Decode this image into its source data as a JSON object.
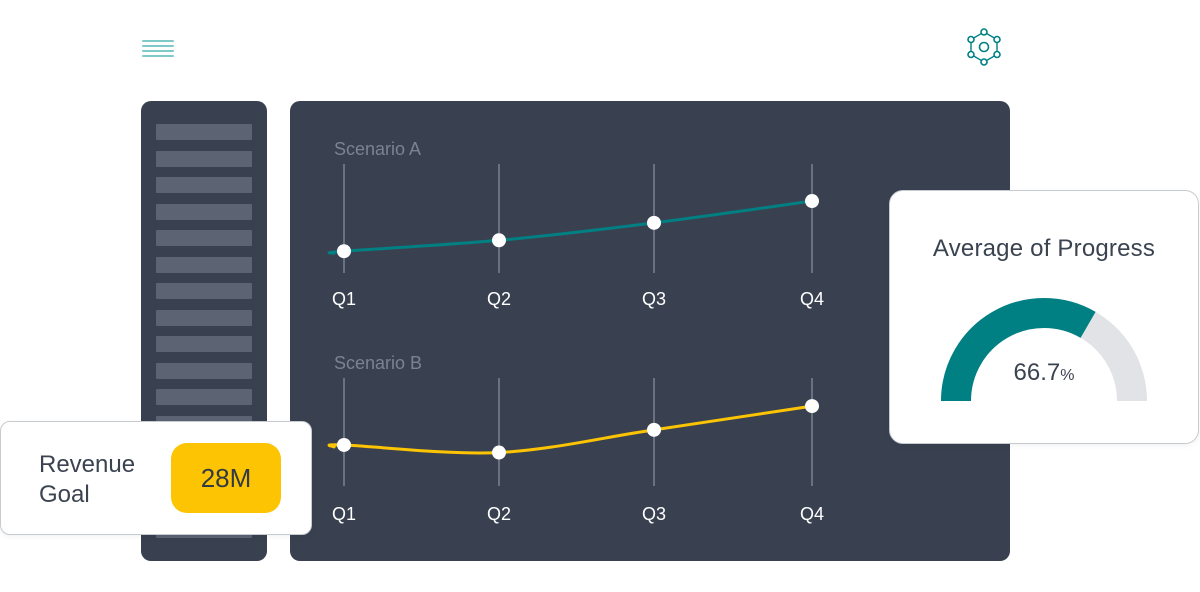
{
  "header": {
    "menu_icon": "hamburger-menu-icon",
    "hub_icon": "network-hub-icon"
  },
  "colors": {
    "panel": "#394150",
    "teal": "#008083",
    "yellow": "#fcc402",
    "gauge_track": "#e1e3e6",
    "menu_icon": "#7fc9c9"
  },
  "chart_data": [
    {
      "type": "line",
      "title": "Scenario A",
      "categories": [
        "Q1",
        "Q2",
        "Q3",
        "Q4"
      ],
      "series": [
        {
          "values": [
            20,
            30,
            46,
            66
          ],
          "color": "#008083"
        }
      ],
      "ylim": [
        0,
        100
      ],
      "grid": true
    },
    {
      "type": "line",
      "title": "Scenario B",
      "categories": [
        "Q1",
        "Q2",
        "Q3",
        "Q4"
      ],
      "series": [
        {
          "values": [
            38,
            31,
            52,
            74
          ],
          "color": "#fcc402"
        }
      ],
      "ylim": [
        0,
        100
      ],
      "grid": true
    }
  ],
  "progress_card": {
    "title": "Average of Progress",
    "value": "66.7",
    "unit": "%",
    "fraction": 0.667
  },
  "revenue_card": {
    "label": "Revenue Goal",
    "value": "28M"
  }
}
